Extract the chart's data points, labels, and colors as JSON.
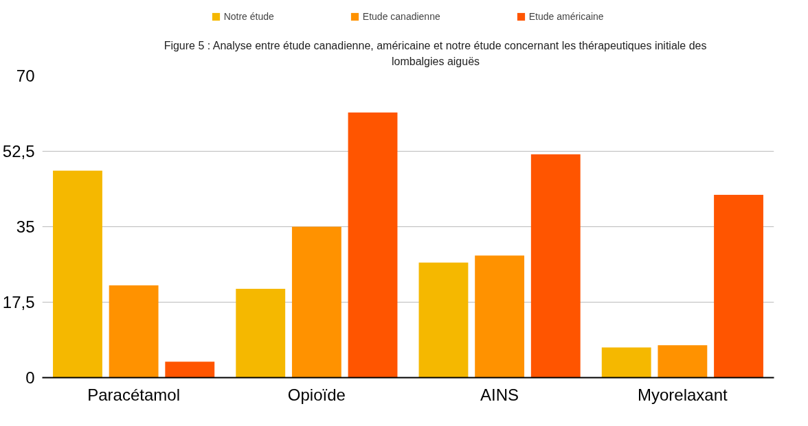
{
  "chart_data": {
    "type": "bar",
    "title": "Figure 5 : Analyse entre étude canadienne, américaine et notre étude concernant les thérapeutiques initiale des lombalgies aiguës",
    "categories": [
      "Paracétamol",
      "Opioïde",
      "AINS",
      "Myorelaxant"
    ],
    "series": [
      {
        "name": "Notre étude",
        "color": "#f5b800",
        "values": [
          48,
          20.6,
          26.7,
          7
        ]
      },
      {
        "name": "Etude canadienne",
        "color": "#ff9200",
        "values": [
          21.4,
          35,
          28.3,
          7.5
        ]
      },
      {
        "name": "Etude américaine",
        "color": "#ff5500",
        "values": [
          3.7,
          61.5,
          51.8,
          42.4
        ]
      }
    ],
    "ylim": [
      0,
      70
    ],
    "yticks": [
      0,
      {
        "value": 17.5,
        "label": "17,5"
      },
      35,
      {
        "value": 52.5,
        "label": "52,5"
      },
      70
    ],
    "grid": "y",
    "legend": "top"
  }
}
